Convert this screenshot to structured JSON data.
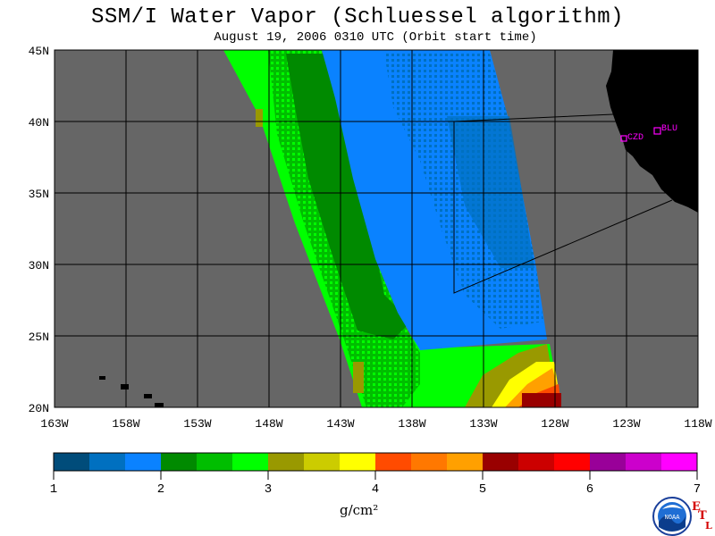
{
  "title": "SSM/I Water Vapor (Schluessel algorithm)",
  "subtitle": "August 19, 2006  0310 UTC  (Orbit start time)",
  "map": {
    "lon_labels": [
      "163W",
      "158W",
      "153W",
      "148W",
      "143W",
      "138W",
      "133W",
      "128W",
      "123W",
      "118W"
    ],
    "lat_labels": [
      "45N",
      "40N",
      "35N",
      "30N",
      "25N",
      "20N"
    ],
    "stations": [
      {
        "label": "CZD",
        "color": "#ff00ff"
      },
      {
        "label": "BLU",
        "color": "#ff00ff"
      }
    ],
    "colors": {
      "ocean": "#666666",
      "land": "#000000",
      "grid": "#000000"
    }
  },
  "colorbar": {
    "tick_labels": [
      "1",
      "2",
      "3",
      "4",
      "5",
      "6",
      "7"
    ],
    "unit": "g/cm²",
    "colors": [
      "#004c7a",
      "#0070c0",
      "#0a82ff",
      "#008a00",
      "#00be00",
      "#00ff00",
      "#999900",
      "#cccc00",
      "#ffff00",
      "#ff4b00",
      "#ff7800",
      "#ffa000",
      "#990000",
      "#cc0000",
      "#ff0000",
      "#990099",
      "#cc00cc",
      "#ff00ff"
    ]
  },
  "logo": {
    "text": "NOAA",
    "etl": [
      "E",
      "T",
      "L"
    ]
  }
}
